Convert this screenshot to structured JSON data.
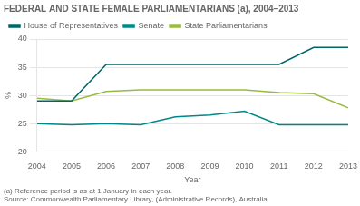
{
  "chart_data": {
    "type": "line",
    "title": "FEDERAL AND STATE FEMALE PARLIAMENTARIANS (a), 2004–2013",
    "xlabel": "Year",
    "ylabel": "%",
    "x": [
      2004,
      2005,
      2006,
      2007,
      2008,
      2009,
      2010,
      2011,
      2012,
      2013
    ],
    "series": [
      {
        "name": "House of Representatives",
        "color": "#006666",
        "values": [
          29.0,
          29.0,
          35.5,
          35.5,
          35.5,
          35.5,
          35.5,
          35.5,
          38.5,
          38.5
        ]
      },
      {
        "name": "Senate",
        "color": "#008888",
        "values": [
          25.0,
          24.8,
          25.0,
          24.8,
          26.2,
          26.5,
          27.2,
          24.8,
          24.8,
          24.8
        ]
      },
      {
        "name": "State Parliamentarians",
        "color": "#99bb44",
        "values": [
          29.5,
          29.0,
          30.7,
          31.0,
          31.0,
          31.0,
          31.0,
          30.5,
          30.3,
          27.8
        ]
      }
    ],
    "xlim": [
      2004,
      2013
    ],
    "xticks": [
      2004,
      2005,
      2006,
      2007,
      2008,
      2009,
      2010,
      2011,
      2012,
      2013
    ],
    "ylim": [
      20,
      40
    ],
    "yticks": [
      20,
      25,
      30,
      35,
      40
    ],
    "grid": true,
    "legend": "upper left",
    "annotations": [
      "(a) Reference period is as at 1 January in each year.",
      "Source: Commonwealth Parliamentary Library, (Administrative Records), Australia."
    ]
  }
}
